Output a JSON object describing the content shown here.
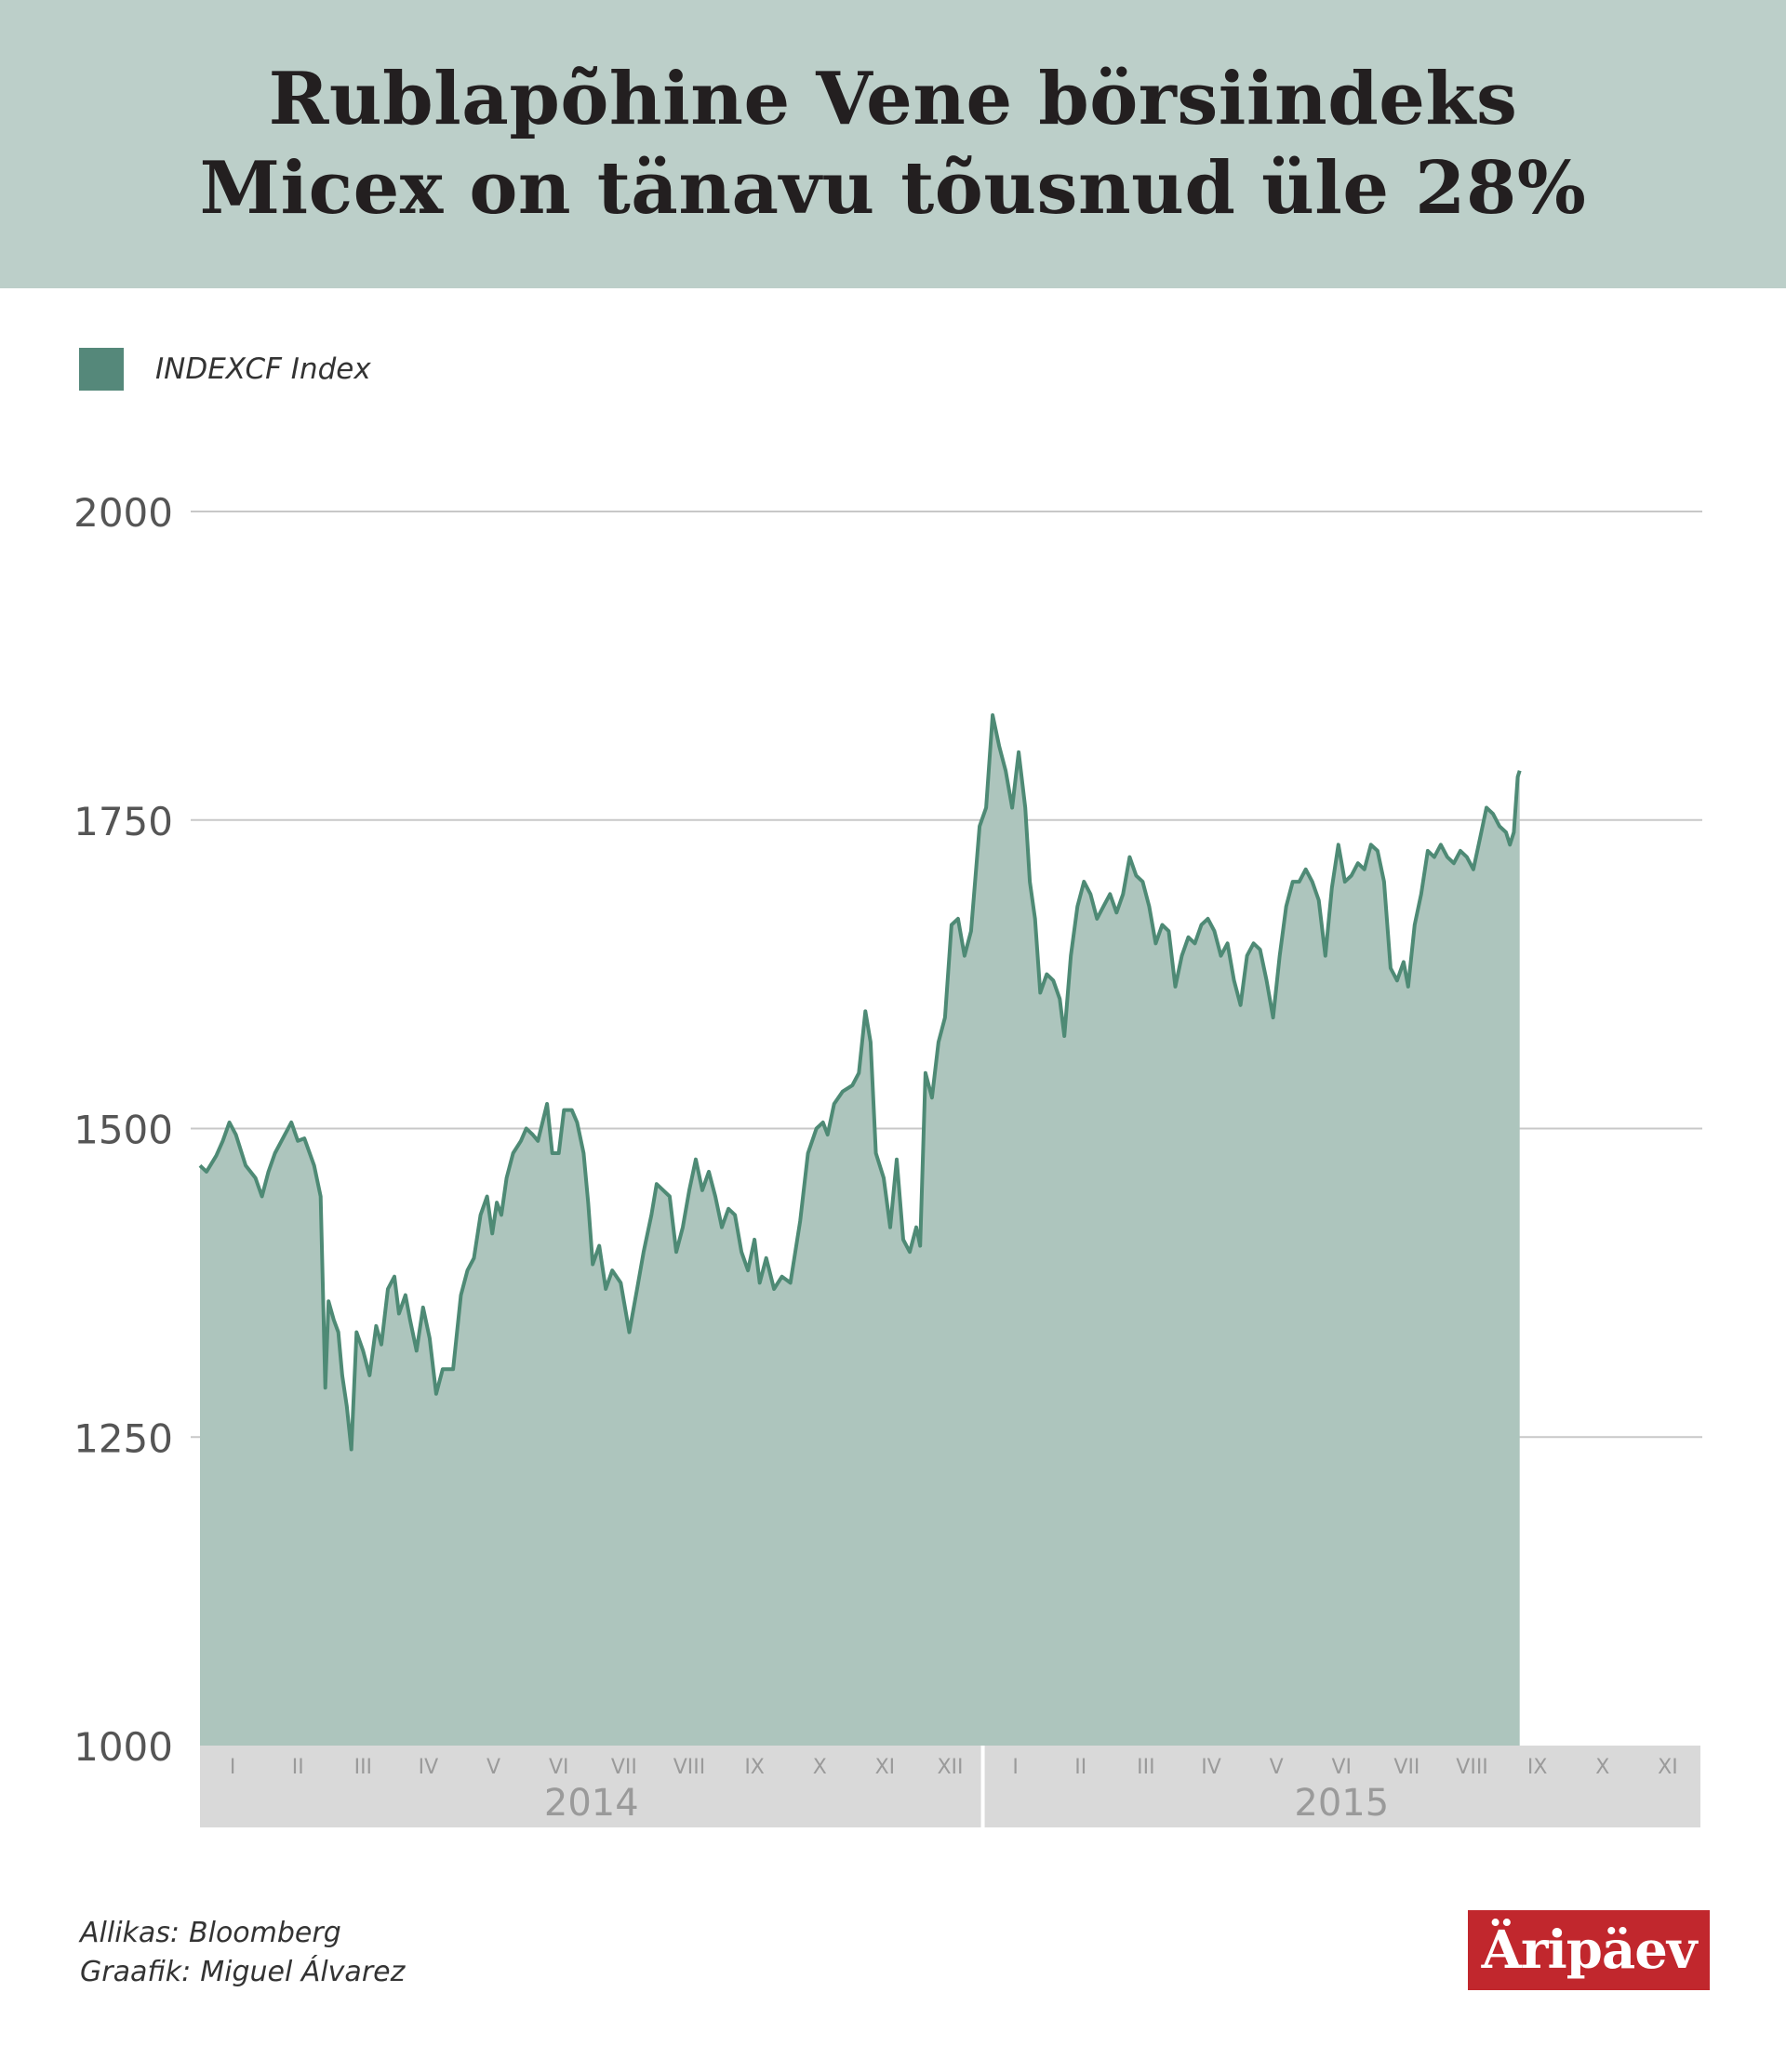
{
  "title_lines": [
    "Rublapõhine Vene börsiindeks",
    "Micex on tänavu tõusnud üle 28%"
  ],
  "colors": {
    "header_bg": "#bccfc9",
    "line": "#4e8a75",
    "area": "#adc5bd",
    "swatch": "#55887a",
    "grid": "#c8c8c8",
    "band": "#d9d9d9",
    "logo_bg": "#c1272d"
  },
  "footer": {
    "source_label": "Allikas:",
    "source_value": "Bloomberg",
    "author_label": "Graafik:",
    "author_value": "Miguel Álvarez"
  },
  "logo_text": "Äripäev",
  "chart_data": {
    "type": "area",
    "legend": {
      "label": "INDEXCF Index",
      "position": "top-left"
    },
    "ylim": [
      1000,
      2000
    ],
    "yticks": [
      1000,
      1250,
      1500,
      1750,
      2000
    ],
    "grid": true,
    "xlim": [
      0,
      23
    ],
    "month_labels": [
      "I",
      "II",
      "III",
      "IV",
      "V",
      "VI",
      "VII",
      "VIII",
      "IX",
      "X",
      "XI",
      "XII",
      "I",
      "II",
      "III",
      "IV",
      "V",
      "VI",
      "VII",
      "VIII",
      "IX",
      "X",
      "XI"
    ],
    "year_labels": [
      "2014",
      "2015"
    ],
    "series": [
      {
        "name": "INDEXCF Index",
        "points": [
          [
            0.0,
            1470
          ],
          [
            0.1,
            1465
          ],
          [
            0.25,
            1478
          ],
          [
            0.35,
            1490
          ],
          [
            0.45,
            1505
          ],
          [
            0.55,
            1495
          ],
          [
            0.7,
            1470
          ],
          [
            0.85,
            1460
          ],
          [
            0.95,
            1445
          ],
          [
            1.05,
            1465
          ],
          [
            1.15,
            1480
          ],
          [
            1.3,
            1495
          ],
          [
            1.4,
            1505
          ],
          [
            1.5,
            1490
          ],
          [
            1.6,
            1492
          ],
          [
            1.75,
            1470
          ],
          [
            1.85,
            1445
          ],
          [
            1.92,
            1290
          ],
          [
            1.97,
            1360
          ],
          [
            2.05,
            1345
          ],
          [
            2.12,
            1335
          ],
          [
            2.18,
            1300
          ],
          [
            2.25,
            1275
          ],
          [
            2.32,
            1240
          ],
          [
            2.4,
            1335
          ],
          [
            2.5,
            1320
          ],
          [
            2.6,
            1300
          ],
          [
            2.7,
            1340
          ],
          [
            2.78,
            1325
          ],
          [
            2.88,
            1370
          ],
          [
            2.98,
            1380
          ],
          [
            3.05,
            1350
          ],
          [
            3.15,
            1365
          ],
          [
            3.22,
            1345
          ],
          [
            3.32,
            1320
          ],
          [
            3.42,
            1355
          ],
          [
            3.52,
            1330
          ],
          [
            3.62,
            1285
          ],
          [
            3.72,
            1305
          ],
          [
            3.88,
            1305
          ],
          [
            4.0,
            1365
          ],
          [
            4.1,
            1385
          ],
          [
            4.2,
            1395
          ],
          [
            4.3,
            1430
          ],
          [
            4.4,
            1445
          ],
          [
            4.48,
            1415
          ],
          [
            4.55,
            1440
          ],
          [
            4.62,
            1430
          ],
          [
            4.7,
            1460
          ],
          [
            4.8,
            1480
          ],
          [
            4.92,
            1490
          ],
          [
            5.0,
            1500
          ],
          [
            5.1,
            1495
          ],
          [
            5.18,
            1490
          ],
          [
            5.25,
            1505
          ],
          [
            5.32,
            1520
          ],
          [
            5.4,
            1480
          ],
          [
            5.5,
            1480
          ],
          [
            5.58,
            1515
          ],
          [
            5.7,
            1515
          ],
          [
            5.78,
            1505
          ],
          [
            5.88,
            1480
          ],
          [
            5.95,
            1440
          ],
          [
            6.02,
            1390
          ],
          [
            6.12,
            1405
          ],
          [
            6.22,
            1370
          ],
          [
            6.32,
            1385
          ],
          [
            6.45,
            1375
          ],
          [
            6.58,
            1335
          ],
          [
            6.7,
            1370
          ],
          [
            6.8,
            1400
          ],
          [
            6.92,
            1430
          ],
          [
            7.0,
            1455
          ],
          [
            7.1,
            1450
          ],
          [
            7.2,
            1445
          ],
          [
            7.3,
            1400
          ],
          [
            7.4,
            1420
          ],
          [
            7.5,
            1450
          ],
          [
            7.6,
            1475
          ],
          [
            7.7,
            1450
          ],
          [
            7.8,
            1465
          ],
          [
            7.9,
            1445
          ],
          [
            8.0,
            1420
          ],
          [
            8.1,
            1435
          ],
          [
            8.2,
            1430
          ],
          [
            8.3,
            1400
          ],
          [
            8.4,
            1385
          ],
          [
            8.5,
            1410
          ],
          [
            8.58,
            1375
          ],
          [
            8.68,
            1395
          ],
          [
            8.8,
            1370
          ],
          [
            8.92,
            1380
          ],
          [
            9.05,
            1375
          ],
          [
            9.2,
            1425
          ],
          [
            9.32,
            1480
          ],
          [
            9.45,
            1500
          ],
          [
            9.55,
            1505
          ],
          [
            9.62,
            1495
          ],
          [
            9.72,
            1520
          ],
          [
            9.85,
            1530
          ],
          [
            10.0,
            1535
          ],
          [
            10.1,
            1545
          ],
          [
            10.2,
            1595
          ],
          [
            10.28,
            1570
          ],
          [
            10.36,
            1480
          ],
          [
            10.48,
            1460
          ],
          [
            10.58,
            1420
          ],
          [
            10.68,
            1475
          ],
          [
            10.78,
            1410
          ],
          [
            10.88,
            1400
          ],
          [
            10.98,
            1420
          ],
          [
            11.04,
            1405
          ],
          [
            11.12,
            1545
          ],
          [
            11.22,
            1525
          ],
          [
            11.32,
            1570
          ],
          [
            11.42,
            1590
          ],
          [
            11.52,
            1665
          ],
          [
            11.62,
            1670
          ],
          [
            11.72,
            1640
          ],
          [
            11.82,
            1660
          ],
          [
            11.95,
            1745
          ],
          [
            12.05,
            1760
          ],
          [
            12.15,
            1835
          ],
          [
            12.25,
            1810
          ],
          [
            12.35,
            1790
          ],
          [
            12.45,
            1760
          ],
          [
            12.55,
            1805
          ],
          [
            12.65,
            1760
          ],
          [
            12.72,
            1700
          ],
          [
            12.8,
            1670
          ],
          [
            12.88,
            1610
          ],
          [
            12.98,
            1625
          ],
          [
            13.08,
            1620
          ],
          [
            13.18,
            1605
          ],
          [
            13.25,
            1575
          ],
          [
            13.35,
            1640
          ],
          [
            13.45,
            1680
          ],
          [
            13.55,
            1700
          ],
          [
            13.65,
            1690
          ],
          [
            13.75,
            1670
          ],
          [
            13.85,
            1680
          ],
          [
            13.95,
            1690
          ],
          [
            14.05,
            1675
          ],
          [
            14.15,
            1690
          ],
          [
            14.25,
            1720
          ],
          [
            14.35,
            1705
          ],
          [
            14.45,
            1700
          ],
          [
            14.55,
            1680
          ],
          [
            14.65,
            1650
          ],
          [
            14.75,
            1665
          ],
          [
            14.85,
            1660
          ],
          [
            14.95,
            1615
          ],
          [
            15.05,
            1640
          ],
          [
            15.15,
            1655
          ],
          [
            15.25,
            1650
          ],
          [
            15.35,
            1665
          ],
          [
            15.45,
            1670
          ],
          [
            15.55,
            1660
          ],
          [
            15.65,
            1640
          ],
          [
            15.75,
            1650
          ],
          [
            15.85,
            1620
          ],
          [
            15.95,
            1600
          ],
          [
            16.05,
            1640
          ],
          [
            16.15,
            1650
          ],
          [
            16.25,
            1645
          ],
          [
            16.35,
            1620
          ],
          [
            16.45,
            1590
          ],
          [
            16.55,
            1640
          ],
          [
            16.65,
            1680
          ],
          [
            16.75,
            1700
          ],
          [
            16.85,
            1700
          ],
          [
            16.95,
            1710
          ],
          [
            17.05,
            1700
          ],
          [
            17.15,
            1685
          ],
          [
            17.25,
            1640
          ],
          [
            17.35,
            1695
          ],
          [
            17.45,
            1730
          ],
          [
            17.55,
            1700
          ],
          [
            17.65,
            1705
          ],
          [
            17.75,
            1715
          ],
          [
            17.85,
            1710
          ],
          [
            17.95,
            1730
          ],
          [
            18.05,
            1725
          ],
          [
            18.15,
            1700
          ],
          [
            18.25,
            1630
          ],
          [
            18.35,
            1620
          ],
          [
            18.45,
            1635
          ],
          [
            18.52,
            1615
          ],
          [
            18.62,
            1665
          ],
          [
            18.72,
            1690
          ],
          [
            18.82,
            1725
          ],
          [
            18.92,
            1720
          ],
          [
            19.02,
            1730
          ],
          [
            19.12,
            1720
          ],
          [
            19.22,
            1715
          ],
          [
            19.32,
            1725
          ],
          [
            19.42,
            1720
          ],
          [
            19.52,
            1710
          ],
          [
            19.62,
            1735
          ],
          [
            19.72,
            1760
          ],
          [
            19.82,
            1755
          ],
          [
            19.92,
            1745
          ],
          [
            20.02,
            1740
          ],
          [
            20.08,
            1730
          ],
          [
            20.14,
            1740
          ],
          [
            20.2,
            1785
          ],
          [
            20.23,
            1790
          ]
        ]
      }
    ]
  }
}
